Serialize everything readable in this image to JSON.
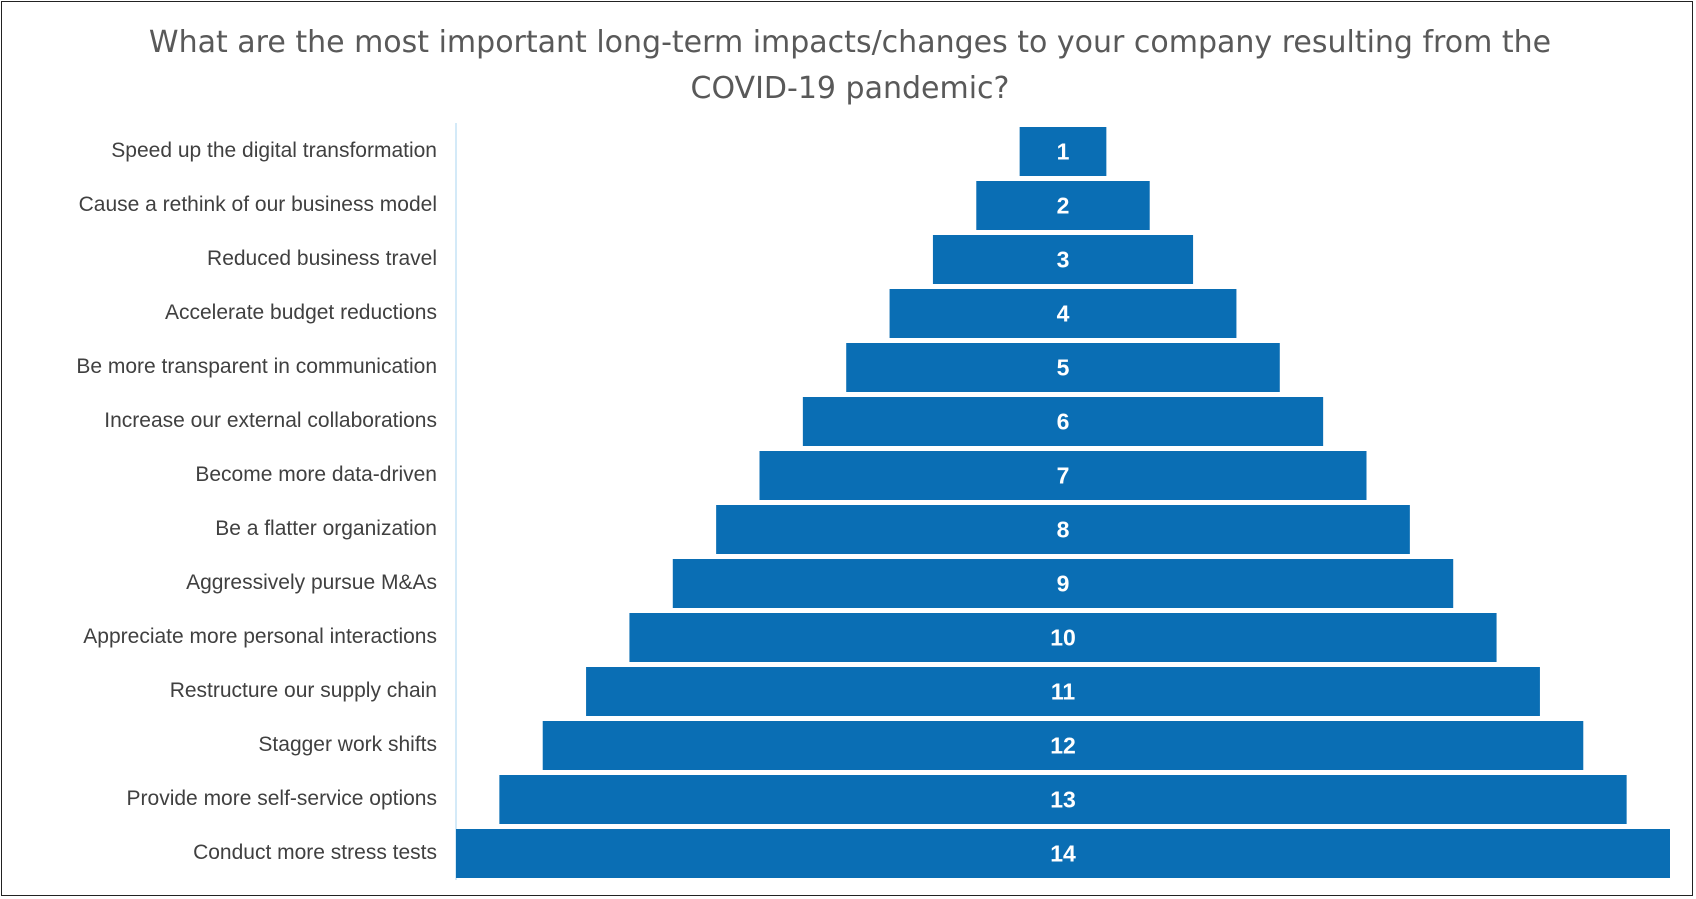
{
  "chart_data": {
    "type": "funnel",
    "title": "What are the most important long-term impacts/changes to your company resulting from the COVID-19 pandemic?",
    "categories": [
      "Speed up the digital transformation",
      "Cause a rethink of our business model",
      "Reduced business travel",
      "Accelerate budget reductions",
      "Be more transparent in communication",
      "Increase our external collaborations",
      "Become more data-driven",
      "Be a flatter organization",
      "Aggressively pursue M&As",
      "Appreciate more personal interactions",
      "Restructure our supply chain",
      "Stagger work shifts",
      "Provide more self-service options",
      "Conduct more stress tests"
    ],
    "values": [
      1,
      2,
      3,
      4,
      5,
      6,
      7,
      8,
      9,
      10,
      11,
      12,
      13,
      14
    ],
    "color": "#0a6eb4"
  }
}
